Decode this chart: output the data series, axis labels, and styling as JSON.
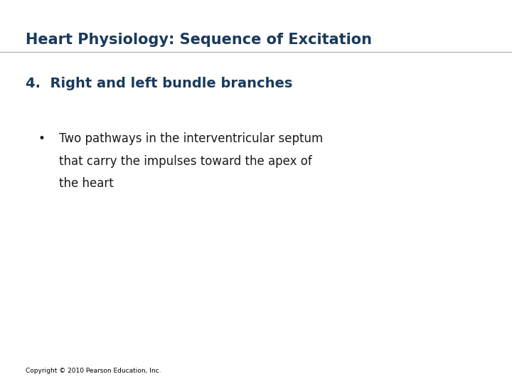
{
  "background_color": "#ffffff",
  "title": "Heart Physiology: Sequence of Excitation",
  "title_color": "#1a3a5c",
  "title_fontsize": 15,
  "title_bold": true,
  "heading_number": "4.",
  "heading_text": "  Right and left bundle branches",
  "heading_color": "#1a3a5c",
  "heading_fontsize": 14,
  "heading_bold": true,
  "bullet_symbol": "•",
  "bullet_text": "Two pathways in the interventricular septum\nthat carry the impulses toward the apex of\nthe heart",
  "bullet_color": "#1a1a1a",
  "bullet_fontsize": 12,
  "copyright_text": "Copyright © 2010 Pearson Education, Inc.",
  "copyright_fontsize": 6.5,
  "copyright_color": "#000000"
}
